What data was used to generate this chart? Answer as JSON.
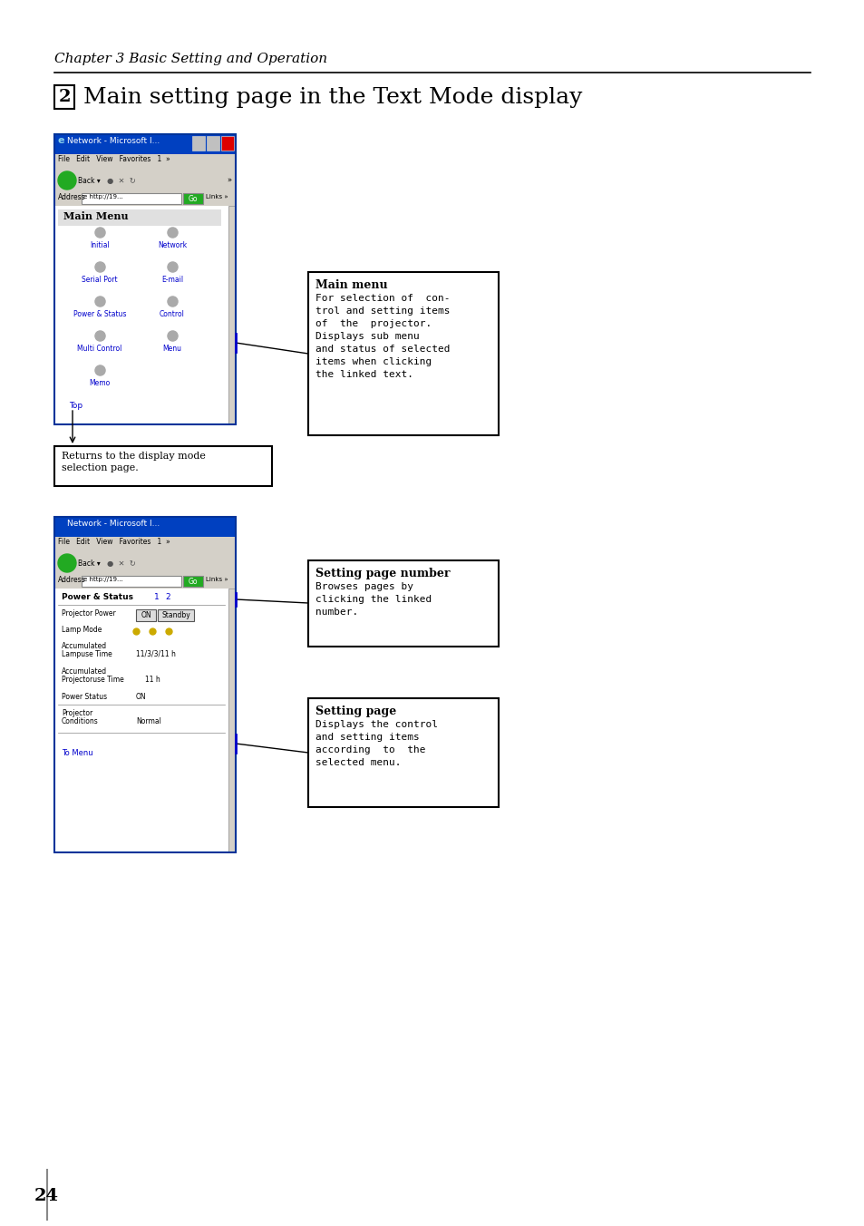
{
  "bg_color": "#ffffff",
  "page_number": "24",
  "chapter_text": "Chapter 3 Basic Setting and Operation",
  "title_number": "2",
  "title_text": "Main setting page in the Text Mode display",
  "annotation1_title": "Main menu",
  "annotation1_body": "For selection of  con-\ntrol and setting items\nof  the  projector.\nDisplays sub menu\nand status of selected\nitems when clicking\nthe linked text.",
  "annotation2_text": "Returns to the display mode\nselection page.",
  "annotation3_title": "Setting page number",
  "annotation3_body": "Browses pages by\nclicking the linked\nnumber.",
  "annotation4_title": "Setting page",
  "annotation4_body": "Displays the control\nand setting items\naccording  to  the\nselected menu.",
  "browser1_title": "Network - Microsoft I...",
  "browser1_menu_items": [
    "Initial",
    "Network",
    "Serial Port",
    "E-mail",
    "Power & Status",
    "Control",
    "Multi Control",
    "Menu",
    "Memo"
  ],
  "browser1_top_link": "Top",
  "browser2_title": "Network - Microsoft I...",
  "browser2_content": [
    "Power & Status  1  2",
    "Projector Power   ON  Standby",
    "Lamp Mode",
    "Accumulated\nLampuse Time     11/3/3/11 h",
    "Accumulated\nProjectoruse Time   11 h",
    "Power Status     ON",
    "",
    "Projector\nConditions       Normal",
    "",
    "To Menu"
  ]
}
